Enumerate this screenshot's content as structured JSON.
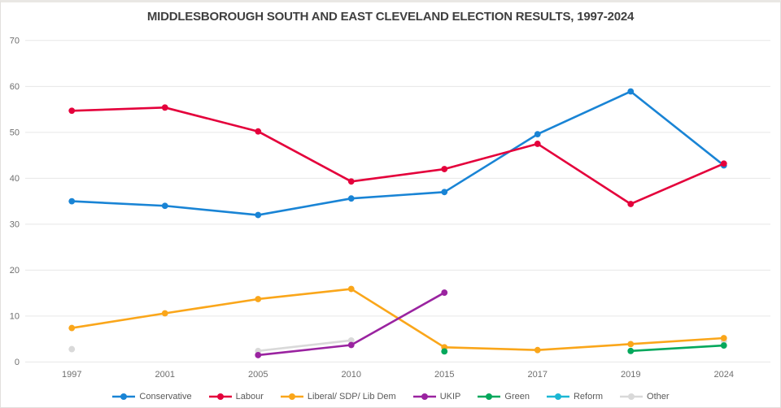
{
  "title": "MIDDLESBOROUGH SOUTH AND EAST CLEVELAND ELECTION RESULTS, 1997-2024",
  "colors": {
    "background": "#ffffff",
    "gridline": "#e7e7e7",
    "tick_label": "#6e6e6e",
    "title_text": "#3f3f3f"
  },
  "chart_data": {
    "type": "line",
    "title": "MIDDLESBOROUGH SOUTH AND EAST CLEVELAND ELECTION RESULTS, 1997-2024",
    "categories": [
      "1997",
      "2001",
      "2005",
      "2010",
      "2015",
      "2017",
      "2019",
      "2024"
    ],
    "series": [
      {
        "name": "Conservative",
        "color": "#1984d5",
        "values": [
          35.0,
          34.0,
          32.0,
          35.6,
          37.0,
          49.6,
          58.9,
          42.8
        ]
      },
      {
        "name": "Labour",
        "color": "#e4003b",
        "values": [
          54.7,
          55.4,
          50.2,
          39.3,
          42.0,
          47.5,
          34.4,
          43.2
        ]
      },
      {
        "name": "Liberal/ SDP/ Lib Dem",
        "color": "#faa61a",
        "values": [
          7.4,
          10.6,
          13.7,
          15.9,
          3.2,
          2.6,
          3.9,
          5.2
        ]
      },
      {
        "name": "UKIP",
        "color": "#9a23a0",
        "values": [
          null,
          null,
          1.5,
          3.7,
          15.1,
          null,
          null,
          null
        ]
      },
      {
        "name": "Green",
        "color": "#04a85c",
        "values": [
          null,
          null,
          null,
          null,
          2.3,
          null,
          2.4,
          3.6
        ]
      },
      {
        "name": "Reform",
        "color": "#1bb7d4",
        "values": [
          null,
          null,
          null,
          null,
          null,
          null,
          null,
          null
        ]
      },
      {
        "name": "Other",
        "color": "#d9d9d9",
        "values": [
          2.8,
          null,
          2.4,
          4.7,
          null,
          null,
          null,
          4.6
        ]
      }
    ],
    "xlabel": "",
    "ylabel": "",
    "ylim": [
      0,
      70
    ],
    "ytick_step": 10,
    "yticks": [
      0,
      10,
      20,
      30,
      40,
      50,
      60,
      70
    ],
    "grid": true,
    "legend_position": "bottom",
    "draw_order_note": "Other drawn behind all other series"
  }
}
